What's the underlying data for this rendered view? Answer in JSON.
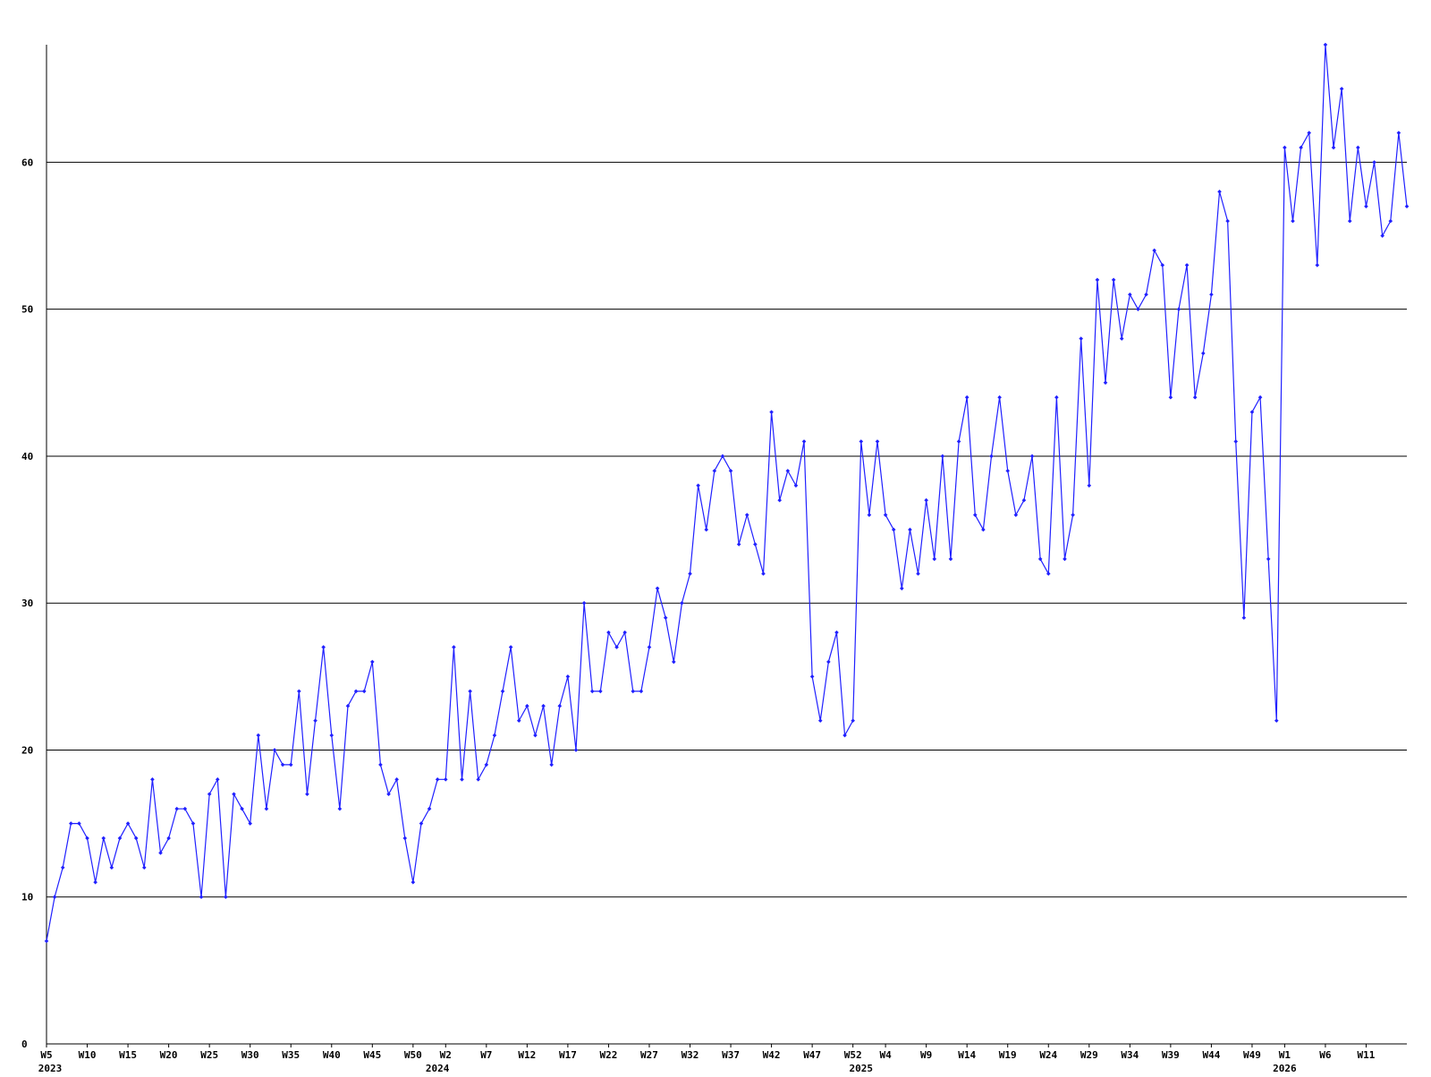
{
  "chart_data": {
    "type": "line",
    "categories": [
      "W5",
      null,
      null,
      null,
      null,
      "W10",
      null,
      null,
      null,
      null,
      "W15",
      null,
      null,
      null,
      null,
      "W20",
      null,
      null,
      null,
      null,
      "W25",
      null,
      null,
      null,
      null,
      "W30",
      null,
      null,
      null,
      null,
      "W35",
      null,
      null,
      null,
      null,
      "W40",
      null,
      null,
      null,
      null,
      "W45",
      null,
      null,
      null,
      null,
      "W50",
      null,
      null,
      null,
      "W2",
      null,
      null,
      null,
      null,
      "W7",
      null,
      null,
      null,
      null,
      "W12",
      null,
      null,
      null,
      null,
      "W17",
      null,
      null,
      null,
      null,
      "W22",
      null,
      null,
      null,
      null,
      "W27",
      null,
      null,
      null,
      null,
      "W32",
      null,
      null,
      null,
      null,
      "W37",
      null,
      null,
      null,
      null,
      "W42",
      null,
      null,
      null,
      null,
      "W47",
      null,
      null,
      null,
      null,
      "W52",
      null,
      null,
      null,
      "W4",
      null,
      null,
      null,
      null,
      "W9",
      null,
      null,
      null,
      null,
      "W14",
      null,
      null,
      null,
      null,
      "W19",
      null,
      null,
      null,
      null,
      "W24",
      null,
      null,
      null,
      null,
      "W29",
      null,
      null,
      null,
      null,
      "W34",
      null,
      null,
      null,
      null,
      "W39",
      null,
      null,
      null,
      null,
      "W44",
      null,
      null,
      null,
      null,
      "W49",
      null,
      null,
      null,
      "W1",
      null,
      null,
      null,
      null,
      "W6",
      null,
      null,
      null,
      null,
      "W11",
      null,
      null,
      null,
      null,
      null
    ],
    "year_labels": [
      "2023",
      null,
      null,
      null,
      null,
      null,
      null,
      null,
      null,
      null,
      null,
      null,
      null,
      null,
      null,
      null,
      null,
      null,
      null,
      null,
      null,
      null,
      null,
      null,
      null,
      null,
      null,
      null,
      null,
      null,
      null,
      null,
      null,
      null,
      null,
      null,
      null,
      null,
      null,
      null,
      null,
      null,
      null,
      null,
      null,
      null,
      null,
      null,
      "2024",
      null,
      null,
      null,
      null,
      null,
      null,
      null,
      null,
      null,
      null,
      null,
      null,
      null,
      null,
      null,
      null,
      null,
      null,
      null,
      null,
      null,
      null,
      null,
      null,
      null,
      null,
      null,
      null,
      null,
      null,
      null,
      null,
      null,
      null,
      null,
      null,
      null,
      null,
      null,
      null,
      null,
      null,
      null,
      null,
      null,
      null,
      null,
      null,
      null,
      null,
      null,
      "2025",
      null,
      null,
      null,
      null,
      null,
      null,
      null,
      null,
      null,
      null,
      null,
      null,
      null,
      null,
      null,
      null,
      null,
      null,
      null,
      null,
      null,
      null,
      null,
      null,
      null,
      null,
      null,
      null,
      null,
      null,
      null,
      null,
      null,
      null,
      null,
      null,
      null,
      null,
      null,
      null,
      null,
      null,
      null,
      null,
      null,
      null,
      null,
      null,
      null,
      null,
      null,
      "2026",
      null,
      null,
      null,
      null,
      null,
      null,
      null,
      null,
      null,
      null,
      null,
      null,
      null,
      null,
      null
    ],
    "series": [
      {
        "color": "#2020ff",
        "values": [
          7,
          10,
          12,
          15,
          15,
          14,
          11,
          14,
          12,
          14,
          15,
          14,
          12,
          18,
          13,
          14,
          16,
          16,
          15,
          10,
          17,
          18,
          10,
          17,
          16,
          15,
          21,
          16,
          20,
          19,
          19,
          24,
          17,
          22,
          27,
          21,
          16,
          23,
          24,
          24,
          26,
          19,
          17,
          18,
          14,
          11,
          15,
          16,
          18,
          18,
          27,
          18,
          24,
          18,
          19,
          21,
          24,
          27,
          22,
          23,
          21,
          23,
          19,
          23,
          25,
          20,
          30,
          24,
          24,
          28,
          27,
          28,
          24,
          24,
          27,
          31,
          29,
          26,
          30,
          32,
          38,
          35,
          39,
          40,
          39,
          34,
          36,
          34,
          32,
          43,
          37,
          39,
          38,
          41,
          25,
          22,
          26,
          28,
          21,
          22,
          41,
          36,
          41,
          36,
          35,
          31,
          35,
          32,
          37,
          33,
          40,
          33,
          41,
          44,
          36,
          35,
          40,
          44,
          39,
          36,
          37,
          40,
          33,
          32,
          44,
          33,
          36,
          48,
          38,
          52,
          45,
          52,
          48,
          51,
          50,
          51,
          54,
          53,
          44,
          50,
          53,
          44,
          47,
          51,
          58,
          56,
          41,
          29,
          43,
          44,
          33,
          22,
          61,
          56,
          61,
          62,
          53,
          68,
          61,
          65,
          56,
          61,
          57,
          60,
          55,
          56,
          62,
          57
        ]
      }
    ],
    "ylim": [
      0,
      68
    ],
    "yticks": [
      0,
      10,
      20,
      30,
      40,
      50,
      60
    ],
    "grid": true
  }
}
